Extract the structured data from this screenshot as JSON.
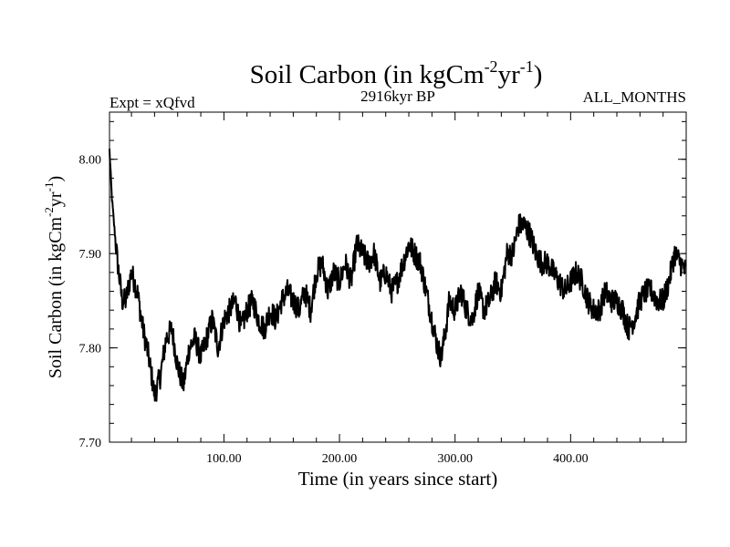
{
  "chart_data": {
    "type": "line",
    "title": "Soil Carbon (in kgCm",
    "title_sup1": "-2",
    "title_mid": "yr",
    "title_sup2": "-1",
    "title_end": ")",
    "experiment_label": "Expt = xQfvd",
    "period_label": "2916kyr BP",
    "months_label": "ALL_MONTHS",
    "xlabel": "Time (in years since start)",
    "ylabel": "Soil Carbon (in kgCm",
    "ylabel_sup1": "-2",
    "ylabel_mid": "yr",
    "ylabel_sup2": "-1",
    "ylabel_end": ")",
    "xlim": [
      1,
      500
    ],
    "ylim": [
      7.7,
      8.05
    ],
    "x_ticks": [
      100,
      200,
      300,
      400
    ],
    "x_tick_labels": [
      "100.00",
      "200.00",
      "300.00",
      "400.00"
    ],
    "y_ticks": [
      7.7,
      7.8,
      7.9,
      8.0
    ],
    "y_tick_labels": [
      "7.70",
      "7.80",
      "7.90",
      "8.00"
    ],
    "series": [
      {
        "name": "Soil Carbon",
        "color": "#000000",
        "x": [
          1,
          3,
          5,
          8,
          12,
          15,
          20,
          25,
          30,
          35,
          40,
          45,
          50,
          55,
          60,
          65,
          70,
          75,
          80,
          85,
          90,
          95,
          100,
          105,
          110,
          115,
          120,
          125,
          130,
          135,
          140,
          145,
          150,
          155,
          160,
          165,
          170,
          175,
          180,
          185,
          190,
          195,
          200,
          205,
          210,
          215,
          220,
          225,
          230,
          235,
          240,
          245,
          250,
          255,
          260,
          265,
          270,
          275,
          280,
          285,
          288,
          292,
          295,
          300,
          305,
          310,
          315,
          320,
          325,
          330,
          335,
          340,
          345,
          350,
          355,
          360,
          365,
          370,
          375,
          380,
          385,
          390,
          395,
          400,
          405,
          410,
          415,
          420,
          425,
          430,
          435,
          440,
          445,
          450,
          455,
          460,
          465,
          470,
          475,
          480,
          485,
          490,
          495,
          500
        ],
        "values": [
          8.01,
          7.96,
          7.93,
          7.89,
          7.85,
          7.85,
          7.88,
          7.86,
          7.82,
          7.79,
          7.75,
          7.77,
          7.81,
          7.82,
          7.78,
          7.76,
          7.8,
          7.81,
          7.79,
          7.81,
          7.83,
          7.8,
          7.83,
          7.84,
          7.85,
          7.82,
          7.84,
          7.85,
          7.83,
          7.82,
          7.84,
          7.83,
          7.85,
          7.86,
          7.85,
          7.84,
          7.86,
          7.84,
          7.88,
          7.89,
          7.86,
          7.88,
          7.87,
          7.89,
          7.87,
          7.91,
          7.9,
          7.89,
          7.9,
          7.87,
          7.88,
          7.86,
          7.87,
          7.89,
          7.91,
          7.9,
          7.89,
          7.86,
          7.83,
          7.8,
          7.79,
          7.82,
          7.85,
          7.84,
          7.86,
          7.84,
          7.83,
          7.86,
          7.84,
          7.85,
          7.87,
          7.86,
          7.9,
          7.9,
          7.93,
          7.93,
          7.92,
          7.9,
          7.89,
          7.89,
          7.88,
          7.87,
          7.86,
          7.87,
          7.88,
          7.87,
          7.85,
          7.84,
          7.84,
          7.86,
          7.85,
          7.85,
          7.84,
          7.82,
          7.83,
          7.85,
          7.86,
          7.86,
          7.85,
          7.85,
          7.87,
          7.9,
          7.89,
          7.88
        ]
      }
    ]
  }
}
